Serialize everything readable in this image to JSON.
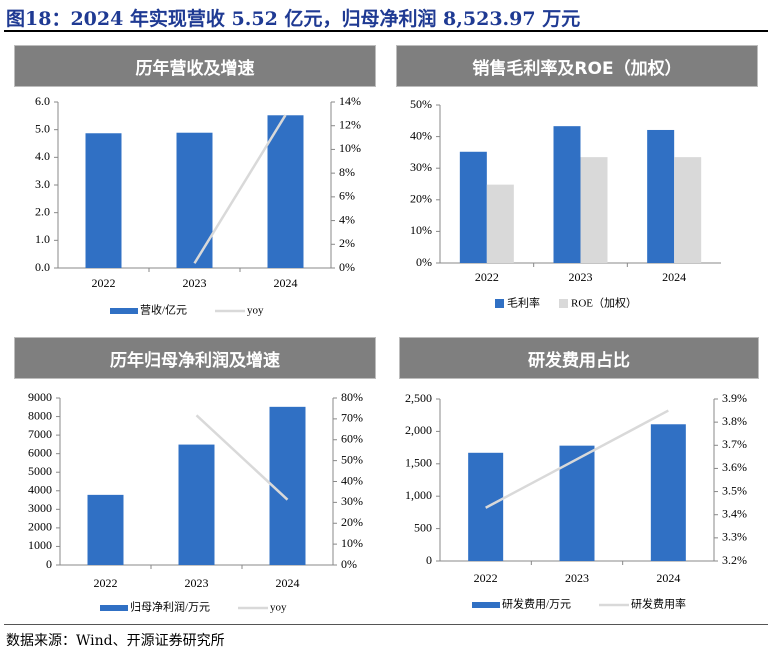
{
  "header": {
    "title": "图18：2024 年实现营收 5.52 亿元，归母净利润 8,523.97 万元"
  },
  "footer": {
    "source": "数据来源：Wind、开源证券研究所"
  },
  "colors": {
    "bar_primary": "#3070c4",
    "bar_secondary": "#d9d9d9",
    "line": "#d9d9d9",
    "header_bg": "#7f7f7f",
    "title_color": "#1f3a93"
  },
  "chart_data": [
    {
      "type": "bar",
      "title": "历年营收及增速",
      "categories": [
        "2022",
        "2023",
        "2024"
      ],
      "series": [
        {
          "name": "营收/亿元",
          "kind": "bar",
          "axis": "left",
          "values": [
            4.87,
            4.89,
            5.52
          ]
        },
        {
          "name": "yoy",
          "kind": "line",
          "axis": "right",
          "values": [
            null,
            0.4,
            12.9
          ]
        }
      ],
      "y_left": {
        "min": 0,
        "max": 6,
        "ticks": [
          "0.0",
          "1.0",
          "2.0",
          "3.0",
          "4.0",
          "5.0",
          "6.0"
        ]
      },
      "y_right": {
        "min": 0,
        "max": 14,
        "ticks": [
          "0%",
          "2%",
          "4%",
          "6%",
          "8%",
          "10%",
          "12%",
          "14%"
        ]
      },
      "legend": "bottom"
    },
    {
      "type": "bar",
      "title": "销售毛利率及ROE（加权）",
      "categories": [
        "2022",
        "2023",
        "2024"
      ],
      "series": [
        {
          "name": "毛利率",
          "kind": "bar",
          "axis": "left",
          "values": [
            35.2,
            43.3,
            42.1
          ]
        },
        {
          "name": "ROE（加权）",
          "kind": "bar",
          "axis": "left",
          "values": [
            24.8,
            33.5,
            33.5
          ]
        }
      ],
      "y_left": {
        "min": 0,
        "max": 50,
        "ticks": [
          "0%",
          "10%",
          "20%",
          "30%",
          "40%",
          "50%"
        ]
      },
      "legend": "bottom"
    },
    {
      "type": "bar",
      "title": "历年归母净利润及增速",
      "categories": [
        "2022",
        "2023",
        "2024"
      ],
      "series": [
        {
          "name": "归母净利润/万元",
          "kind": "bar",
          "axis": "left",
          "values": [
            3780,
            6490,
            8524
          ]
        },
        {
          "name": "yoy",
          "kind": "line",
          "axis": "right",
          "values": [
            null,
            71.7,
            31.3
          ]
        }
      ],
      "y_left": {
        "min": 0,
        "max": 9000,
        "ticks": [
          "0",
          "1000",
          "2000",
          "3000",
          "4000",
          "5000",
          "6000",
          "7000",
          "8000",
          "9000"
        ]
      },
      "y_right": {
        "min": 0,
        "max": 80,
        "ticks": [
          "0%",
          "10%",
          "20%",
          "30%",
          "40%",
          "50%",
          "60%",
          "70%",
          "80%"
        ]
      },
      "legend": "bottom"
    },
    {
      "type": "bar",
      "title": "研发费用占比",
      "categories": [
        "2022",
        "2023",
        "2024"
      ],
      "series": [
        {
          "name": "研发费用/万元",
          "kind": "bar",
          "axis": "left",
          "values": [
            1670,
            1780,
            2110
          ]
        },
        {
          "name": "研发费用率",
          "kind": "line",
          "axis": "right",
          "values": [
            3.43,
            3.64,
            3.85
          ]
        }
      ],
      "y_left": {
        "min": 0,
        "max": 2500,
        "ticks": [
          "0",
          "500",
          "1,000",
          "1,500",
          "2,000",
          "2,500"
        ]
      },
      "y_right": {
        "min": 3.2,
        "max": 3.9,
        "ticks": [
          "3.2%",
          "3.3%",
          "3.4%",
          "3.5%",
          "3.6%",
          "3.7%",
          "3.8%",
          "3.9%"
        ]
      },
      "legend": "bottom"
    }
  ]
}
